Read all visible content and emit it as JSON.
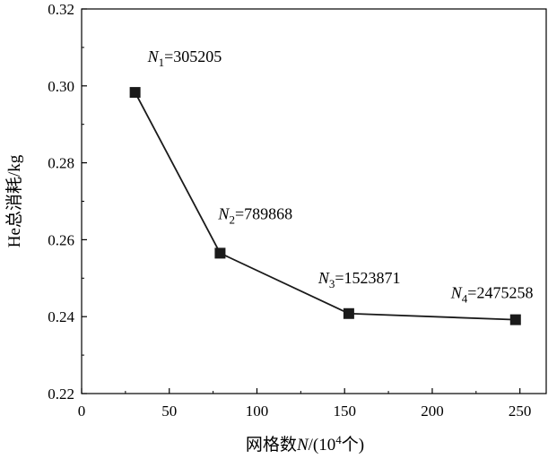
{
  "chart_data": {
    "type": "line",
    "xlabel": {
      "prefix": "网格数",
      "var": "N",
      "mid": "/(10",
      "sup": "4",
      "suffix": "个)"
    },
    "ylabel": "He总消耗/kg",
    "xlim": [
      0,
      265
    ],
    "ylim": [
      0.22,
      0.32
    ],
    "xticks": [
      0,
      50,
      100,
      150,
      200,
      250
    ],
    "xtick_labels": [
      "0",
      "50",
      "100",
      "150",
      "200",
      "250"
    ],
    "yticks": [
      0.22,
      0.24,
      0.26,
      0.28,
      0.3,
      0.32
    ],
    "ytick_labels": [
      "0.22",
      "0.24",
      "0.26",
      "0.28",
      "0.30",
      "0.32"
    ],
    "grid": false,
    "series": [
      {
        "color": "#1a1a1a",
        "marker": "square",
        "points": [
          {
            "x": 30.5,
            "y": 0.2983
          },
          {
            "x": 79.0,
            "y": 0.2565
          },
          {
            "x": 152.4,
            "y": 0.2408
          },
          {
            "x": 247.5,
            "y": 0.2392
          }
        ]
      }
    ],
    "annotations": [
      {
        "var": "N",
        "sub": "1",
        "text": "=305205",
        "x": 30.5,
        "y": 0.2983
      },
      {
        "var": "N",
        "sub": "2",
        "text": "=789868",
        "x": 79.0,
        "y": 0.2565
      },
      {
        "var": "N",
        "sub": "3",
        "text": "=1523871",
        "x": 152.4,
        "y": 0.2408
      },
      {
        "var": "N",
        "sub": "4",
        "text": "=2475258",
        "x": 247.5,
        "y": 0.2392
      }
    ]
  }
}
